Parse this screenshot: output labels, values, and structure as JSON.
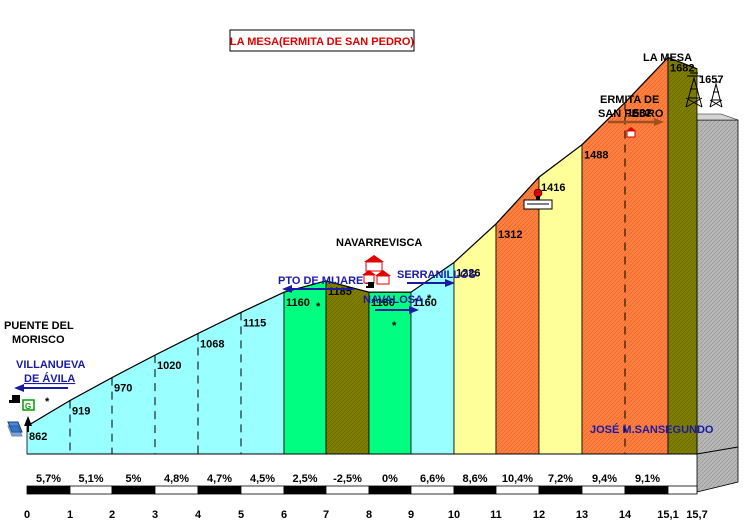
{
  "chart_data": {
    "type": "area",
    "title": "LA MESA(ERMITA DE SAN PEDRO)",
    "author": "JOSÉ M.SANSEGUNDO",
    "xlabel": "",
    "ylabel": "",
    "x_ticks": [
      "0",
      "1",
      "2",
      "3",
      "4",
      "5",
      "6",
      "7",
      "8",
      "9",
      "10",
      "11",
      "12",
      "13",
      "14",
      "15,1",
      "15,7"
    ],
    "points": [
      {
        "km": 0,
        "alt": 862
      },
      {
        "km": 1,
        "alt": 919
      },
      {
        "km": 2,
        "alt": 970
      },
      {
        "km": 3,
        "alt": 1020
      },
      {
        "km": 4,
        "alt": 1068
      },
      {
        "km": 5,
        "alt": 1115
      },
      {
        "km": 6,
        "alt": 1160
      },
      {
        "km": 7,
        "alt": 1185
      },
      {
        "km": 8,
        "alt": 1160
      },
      {
        "km": 9,
        "alt": 1160
      },
      {
        "km": 10,
        "alt": 1226
      },
      {
        "km": 11,
        "alt": 1312
      },
      {
        "km": 12,
        "alt": 1416
      },
      {
        "km": 13,
        "alt": 1488
      },
      {
        "km": 14,
        "alt": 1582
      },
      {
        "km": 15.1,
        "alt": 1682
      },
      {
        "km": 15.7,
        "alt": 1657
      }
    ],
    "segments": [
      {
        "from": 0,
        "to": 6,
        "grades": [
          "5,7%",
          "5,1%",
          "5%",
          "4,8%",
          "4,7%",
          "4,5%"
        ],
        "color": "#99ffff"
      },
      {
        "from": 6,
        "to": 7,
        "grades": [
          "2,5%"
        ],
        "color": "#00ff80"
      },
      {
        "from": 7,
        "to": 8,
        "grades": [
          "-2,5%"
        ],
        "color": "#808000"
      },
      {
        "from": 8,
        "to": 9,
        "grades": [
          "0%"
        ],
        "color": "#00ff80"
      },
      {
        "from": 9,
        "to": 10,
        "grades": [
          "6,6%"
        ],
        "color": "#99ffff"
      },
      {
        "from": 10,
        "to": 11,
        "grades": [
          "8,6%"
        ],
        "color": "#ffff99"
      },
      {
        "from": 11,
        "to": 12,
        "grades": [
          "10,4%"
        ],
        "color": "#ff8040"
      },
      {
        "from": 12,
        "to": 13,
        "grades": [
          "7,2%"
        ],
        "color": "#ffff99"
      },
      {
        "from": 13,
        "to": 15.1,
        "grades": [
          "9,4%",
          "9,1%"
        ],
        "color": "#ff8040"
      },
      {
        "from": 15.1,
        "to": 15.7,
        "grades": [
          ""
        ],
        "color": "#808000"
      }
    ],
    "places": [
      {
        "name": "PUENTE DEL",
        "name2": "MORISCO"
      },
      {
        "name": "VILLANUEVA",
        "name2": "DE ÁVILA"
      },
      {
        "name": "PTO DE MIJARES"
      },
      {
        "name": "NAVARREVISCA"
      },
      {
        "name": "SERRANILLOS"
      },
      {
        "name": "NAVALOSA"
      },
      {
        "name": "ERMITA DE",
        "name2": "SAN PEDRO"
      },
      {
        "name": "LA MESA"
      }
    ]
  }
}
